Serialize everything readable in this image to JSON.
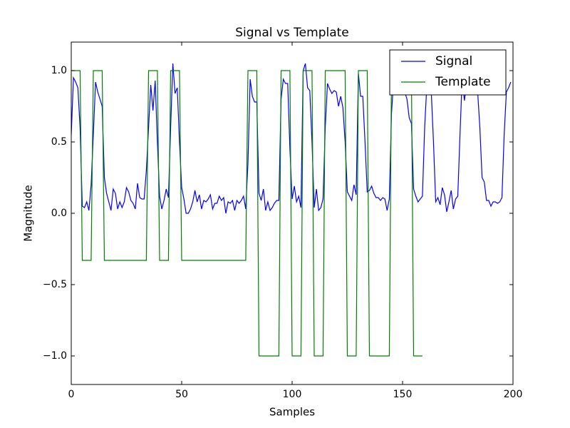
{
  "chart_data": {
    "type": "line",
    "title": "Signal vs Template",
    "x_label": "Samples",
    "y_label": "Magnitude",
    "xlim": [
      0,
      200
    ],
    "xticks": [
      0,
      50,
      100,
      150,
      200
    ],
    "ylim": [
      -1.2,
      1.2
    ],
    "yticks": [
      {
        "value": -1.0,
        "label": "−1.0"
      },
      {
        "value": -0.5,
        "label": "−0.5"
      },
      {
        "value": 0.0,
        "label": "0.0"
      },
      0.5,
      {
        "value": 1.0,
        "label": "1.0"
      }
    ],
    "grid": false,
    "legend": "upper right",
    "series": [
      {
        "name": "Signal",
        "color": "#0000ff",
        "values": [
          0.55,
          0.95,
          0.92,
          0.88,
          0.6,
          0.05,
          0.04,
          0.08,
          0.02,
          0.2,
          0.55,
          0.92,
          0.85,
          0.8,
          0.75,
          0.25,
          0.14,
          0.08,
          0.02,
          0.17,
          0.14,
          0.03,
          0.08,
          0.04,
          0.08,
          0.18,
          0.15,
          0.09,
          0.07,
          0.03,
          0.21,
          0.11,
          0.1,
          0.1,
          0.3,
          0.6,
          0.9,
          0.72,
          0.93,
          0.5,
          0.12,
          0.03,
          0.09,
          0.17,
          0.11,
          0.6,
          1.05,
          0.84,
          0.88,
          0.5,
          0.18,
          0.1,
          0.0,
          0.0,
          0.03,
          0.08,
          0.16,
          0.08,
          0.13,
          0.03,
          0.09,
          0.08,
          0.1,
          0.13,
          0.03,
          0.07,
          0.07,
          0.12,
          0.09,
          0.11,
          0.0,
          0.08,
          0.07,
          0.09,
          0.02,
          0.09,
          0.07,
          0.09,
          0.12,
          0.03,
          0.35,
          0.94,
          0.82,
          0.78,
          0.78,
          0.14,
          0.09,
          0.17,
          0.02,
          0.08,
          0.02,
          0.04,
          0.07,
          0.09,
          0.09,
          0.8,
          0.94,
          0.91,
          0.91,
          0.45,
          0.1,
          0.19,
          0.08,
          0.12,
          0.04,
          1.0,
          1.05,
          0.88,
          0.86,
          0.5,
          0.04,
          0.17,
          0.02,
          0.04,
          0.1,
          0.6,
          0.91,
          0.87,
          0.84,
          0.86,
          0.85,
          0.75,
          0.82,
          0.74,
          0.5,
          0.15,
          0.12,
          0.09,
          0.2,
          0.13,
          0.98,
          0.82,
          0.82,
          0.5,
          0.15,
          0.16,
          0.19,
          0.14,
          0.11,
          0.11,
          0.09,
          0.11,
          0.1,
          0.02,
          0.1,
          0.7,
          0.95,
          0.9,
          0.92,
          0.88,
          0.9,
          0.85,
          0.8,
          0.67,
          0.63,
          0.17,
          0.12,
          0.08,
          0.1,
          0.12,
          0.6,
          0.9,
          0.95,
          0.85,
          0.5,
          0.08,
          0.11,
          0.06,
          0.18,
          0.13,
          0.01,
          0.08,
          0.16,
          0.03,
          0.1,
          0.12,
          0.55,
          0.95,
          0.79,
          0.91,
          0.87,
          0.88,
          0.86,
          0.9,
          0.85,
          0.6,
          0.25,
          0.22,
          0.09,
          0.09,
          0.05,
          0.08,
          0.08,
          0.07,
          0.08,
          0.11,
          0.55,
          0.85,
          0.88,
          0.92
        ]
      },
      {
        "name": "Template",
        "color": "#008000",
        "values": [
          1,
          1,
          1,
          1,
          1,
          -0.33,
          -0.33,
          -0.33,
          -0.33,
          -0.33,
          1,
          1,
          1,
          1,
          1,
          -0.33,
          -0.33,
          -0.33,
          -0.33,
          -0.33,
          -0.33,
          -0.33,
          -0.33,
          -0.33,
          -0.33,
          -0.33,
          -0.33,
          -0.33,
          -0.33,
          -0.33,
          -0.33,
          -0.33,
          -0.33,
          -0.33,
          -0.33,
          1,
          1,
          1,
          1,
          1,
          -0.33,
          -0.33,
          -0.33,
          -0.33,
          -0.33,
          1,
          1,
          1,
          1,
          1,
          -0.33,
          -0.33,
          -0.33,
          -0.33,
          -0.33,
          -0.33,
          -0.33,
          -0.33,
          -0.33,
          -0.33,
          -0.33,
          -0.33,
          -0.33,
          -0.33,
          -0.33,
          -0.33,
          -0.33,
          -0.33,
          -0.33,
          -0.33,
          -0.33,
          -0.33,
          -0.33,
          -0.33,
          -0.33,
          -0.33,
          -0.33,
          -0.33,
          -0.33,
          -0.33,
          1,
          1,
          1,
          1,
          1,
          -1,
          -1,
          -1,
          -1,
          -1,
          -1,
          -1,
          -1,
          -1,
          -1,
          1,
          1,
          1,
          1,
          1,
          -1,
          -1,
          -1,
          -1,
          -1,
          1,
          1,
          1,
          1,
          1,
          -1,
          -1,
          -1,
          -1,
          -1,
          1,
          1,
          1,
          1,
          1,
          1,
          1,
          1,
          1,
          1,
          -1,
          -1,
          -1,
          -1,
          -1,
          1,
          1,
          1,
          1,
          1,
          -1,
          -1,
          -1,
          -1,
          -1,
          -1,
          -1,
          -1,
          -1,
          -1,
          1,
          1,
          1,
          1,
          1,
          1,
          1,
          1,
          1,
          1,
          -1,
          -1,
          -1,
          -1,
          -1
        ]
      }
    ]
  }
}
